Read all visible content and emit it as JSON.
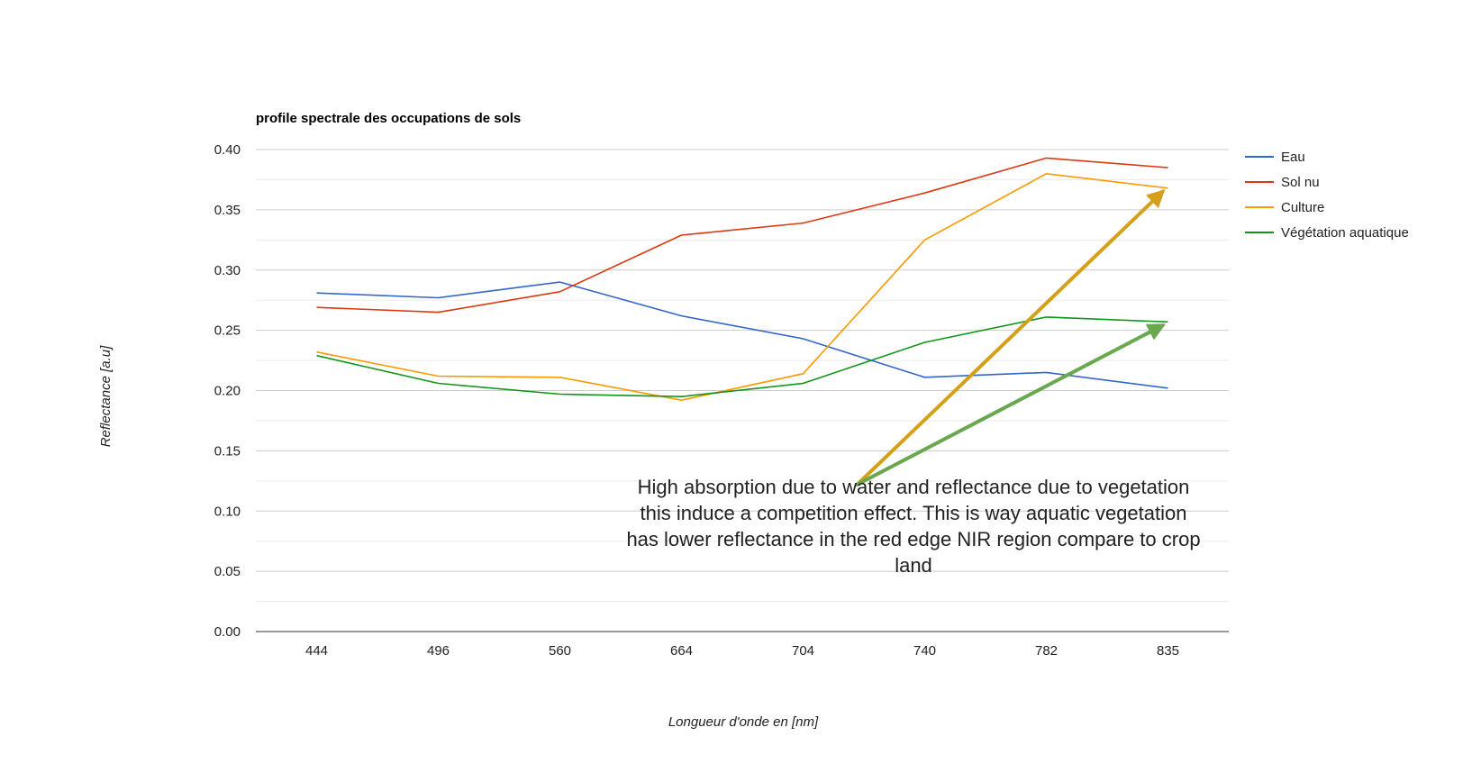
{
  "chart_data": {
    "type": "line",
    "title": "profile spectrale des occupations de sols",
    "xlabel": "Longueur d'onde en [nm]",
    "ylabel": "Reflectance [a.u]",
    "categories": [
      "444",
      "496",
      "560",
      "664",
      "704",
      "740",
      "782",
      "835"
    ],
    "ylim": [
      0,
      0.4
    ],
    "yticks": [
      "0.00",
      "0.05",
      "0.10",
      "0.15",
      "0.20",
      "0.25",
      "0.30",
      "0.35",
      "0.40"
    ],
    "grid": true,
    "legend_position": "right",
    "series": [
      {
        "name": "Eau",
        "color": "#3366cc",
        "values": [
          0.281,
          0.277,
          0.29,
          0.262,
          0.243,
          0.211,
          0.215,
          0.202
        ]
      },
      {
        "name": "Sol nu",
        "color": "#dc3912",
        "values": [
          0.269,
          0.265,
          0.282,
          0.329,
          0.339,
          0.364,
          0.393,
          0.385
        ]
      },
      {
        "name": "Culture",
        "color": "#ff9900",
        "values": [
          0.232,
          0.212,
          0.211,
          0.192,
          0.214,
          0.325,
          0.38,
          0.368
        ]
      },
      {
        "name": "Végétation aquatique",
        "color": "#109618",
        "values": [
          0.229,
          0.206,
          0.197,
          0.195,
          0.206,
          0.24,
          0.261,
          0.257
        ]
      }
    ],
    "annotation": {
      "lines": [
        "High absorption due to water  and reflectance due to vegetation",
        "this induce a competition effect.   This is way aquatic vegetation",
        "has lower reflectance in the red edge  NIR region compare to crop",
        "land"
      ],
      "arrows": [
        {
          "color": "#d4a017",
          "from": {
            "x": "720",
            "y": 0.122
          },
          "to": {
            "x": "835",
            "y": 0.368
          }
        },
        {
          "color": "#6aa84f",
          "from": {
            "x": "720",
            "y": 0.122
          },
          "to": {
            "x": "835",
            "y": 0.257
          }
        }
      ]
    }
  }
}
